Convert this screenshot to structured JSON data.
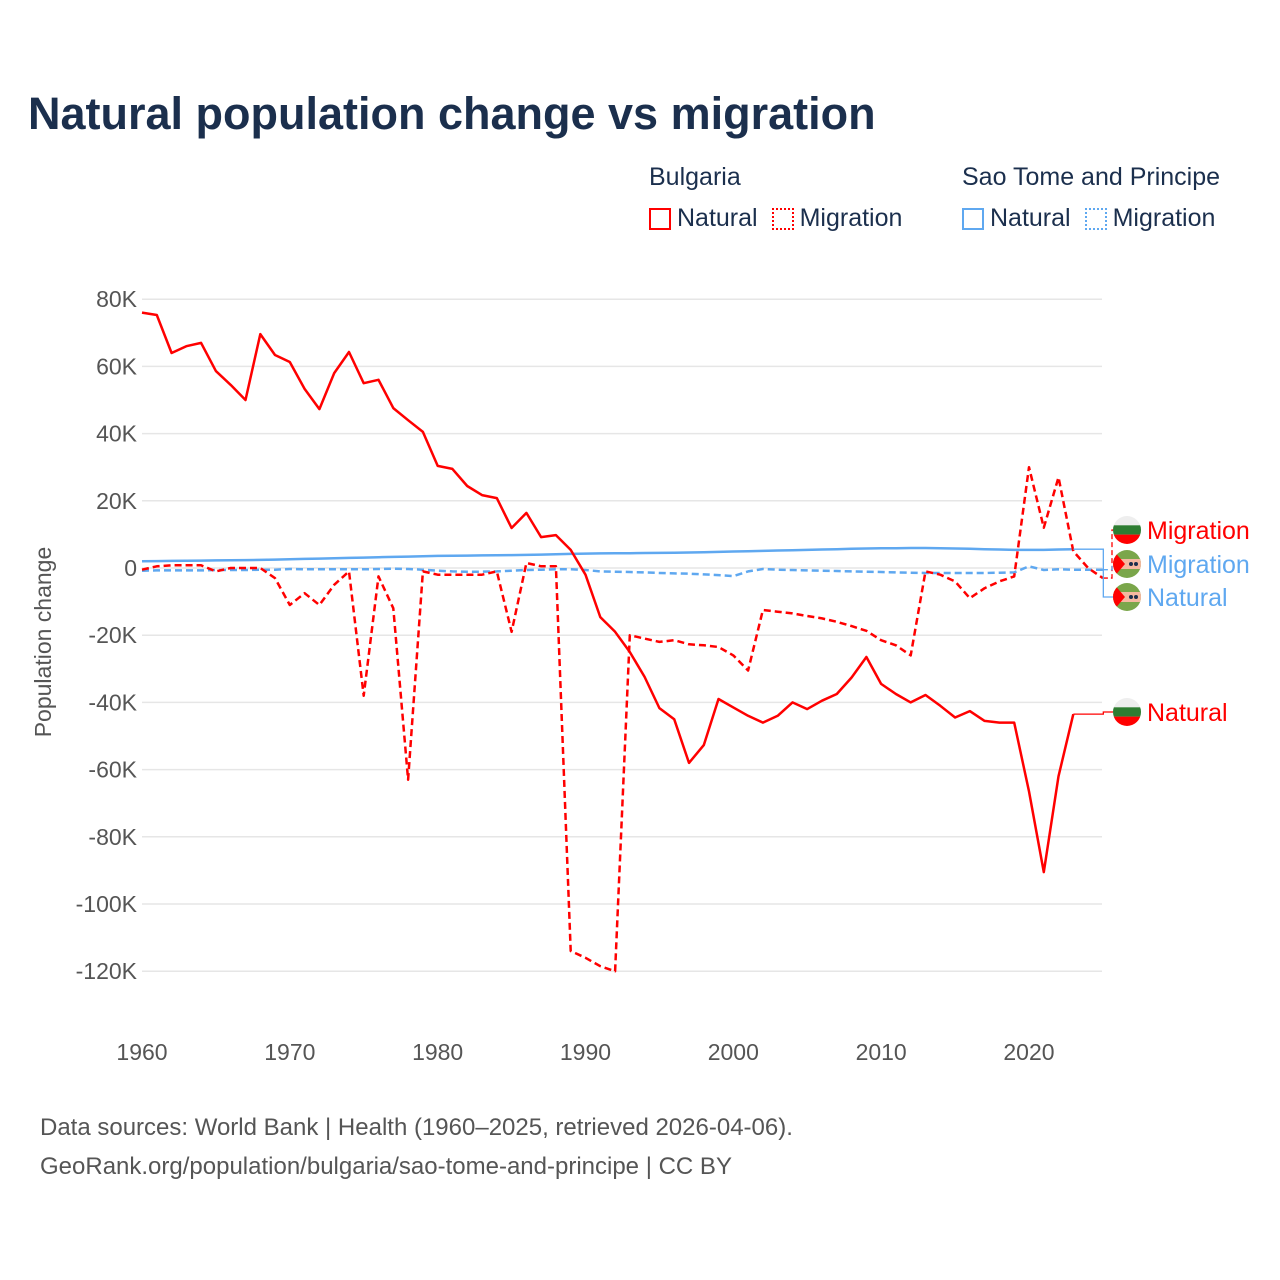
{
  "title": "Natural population change vs migration",
  "legend": {
    "groups": [
      {
        "name": "Bulgaria",
        "items": [
          "Natural",
          "Migration"
        ],
        "color": "#ff0000"
      },
      {
        "name": "Sao Tome and Principe",
        "items": [
          "Natural",
          "Migration"
        ],
        "color": "#5fa8f0"
      }
    ]
  },
  "footer": {
    "line1": "Data sources: World Bank | Health (1960–2025, retrieved 2026-04-06).",
    "line2": "GeoRank.org/population/bulgaria/sao-tome-and-principe | CC BY"
  },
  "chart_data": {
    "type": "line",
    "title": "Natural population change vs migration",
    "xlabel": "",
    "ylabel": "Population change",
    "xlim": [
      1960,
      2025
    ],
    "ylim": [
      -130000,
      85000
    ],
    "x_ticks": [
      1960,
      1970,
      1980,
      1990,
      2000,
      2010,
      2020
    ],
    "x_tick_labels": [
      "1960",
      "1970",
      "1980",
      "1990",
      "2000",
      "2010",
      "2020"
    ],
    "y_ticks": [
      80000,
      60000,
      40000,
      20000,
      0,
      -20000,
      -40000,
      -60000,
      -80000,
      -100000,
      -120000
    ],
    "y_tick_labels": [
      "80K",
      "60K",
      "40K",
      "20K",
      "0",
      "-20K",
      "-40K",
      "-60K",
      "-80K",
      "-100K",
      "-120K"
    ],
    "grid": true,
    "legend_position": "top-right",
    "series": [
      {
        "name": "Bulgaria Natural",
        "end_label": "Natural",
        "color": "#ff0000",
        "dash": false,
        "start": 1960,
        "values": [
          76000,
          75300,
          64000,
          66000,
          67000,
          58600,
          54500,
          50000,
          69600,
          63400,
          61300,
          53300,
          47300,
          58000,
          64300,
          55000,
          56000,
          47600,
          44000,
          40500,
          30400,
          29500,
          24400,
          21700,
          20800,
          11900,
          16400,
          9200,
          9800,
          5400,
          -2000,
          -14600,
          -19000,
          -25000,
          -32400,
          -41700,
          -45000,
          -58000,
          -52700,
          -39000,
          -41500,
          -44000,
          -46000,
          -44000,
          -40000,
          -42000,
          -39500,
          -37500,
          -32600,
          -26500,
          -34500,
          -37500,
          -40000,
          -37800,
          -41000,
          -44500,
          -42600,
          -45500,
          -46000,
          -46000,
          -66500,
          -90500,
          -62000,
          -43500
        ]
      },
      {
        "name": "Bulgaria Migration",
        "end_label": "Migration",
        "color": "#ff0000",
        "dash": true,
        "start": 1960,
        "values": [
          -500,
          500,
          800,
          800,
          800,
          -1000,
          0,
          0,
          0,
          -3000,
          -11000,
          -7500,
          -11000,
          -5000,
          -1000,
          -38000,
          -2500,
          -12000,
          -63000,
          -1000,
          -2000,
          -2000,
          -2000,
          -2000,
          -1000,
          -19000,
          1500,
          500,
          500,
          -114000,
          -116000,
          -118500,
          -120000,
          -20000,
          -21000,
          -22000,
          -21500,
          -22700,
          -23000,
          -23500,
          -26000,
          -30500,
          -12500,
          -13000,
          -13500,
          -14300,
          -15000,
          -16000,
          -17300,
          -18700,
          -21500,
          -23000,
          -26000,
          -1000,
          -2000,
          -4000,
          -9000,
          -6000,
          -4000,
          -2500,
          30000,
          12000,
          27000,
          5000,
          0,
          -3000
        ]
      },
      {
        "name": "Sao Tome and Principe Natural",
        "end_label": "Natural",
        "color": "#5fa8f0",
        "dash": false,
        "start": 1960,
        "values": [
          2000,
          2050,
          2100,
          2150,
          2200,
          2250,
          2300,
          2350,
          2400,
          2500,
          2600,
          2700,
          2800,
          2900,
          3000,
          3100,
          3200,
          3300,
          3400,
          3500,
          3600,
          3650,
          3700,
          3750,
          3800,
          3850,
          3900,
          4000,
          4100,
          4200,
          4300,
          4350,
          4400,
          4400,
          4450,
          4500,
          4550,
          4600,
          4700,
          4800,
          4900,
          5000,
          5100,
          5200,
          5300,
          5400,
          5500,
          5600,
          5700,
          5800,
          5850,
          5900,
          5950,
          5950,
          5900,
          5800,
          5700,
          5600,
          5500,
          5400,
          5400,
          5400,
          5500,
          5600
        ]
      },
      {
        "name": "Sao Tome and Principe Migration",
        "end_label": "Migration",
        "color": "#5fa8f0",
        "dash": true,
        "start": 1960,
        "values": [
          -800,
          -700,
          -700,
          -700,
          -700,
          -600,
          -600,
          -600,
          -500,
          -500,
          -300,
          -400,
          -400,
          -400,
          -400,
          -400,
          -300,
          -200,
          -300,
          -500,
          -800,
          -1000,
          -1100,
          -1100,
          -1000,
          -800,
          -600,
          -500,
          -400,
          -400,
          -600,
          -1000,
          -1100,
          -1200,
          -1300,
          -1500,
          -1600,
          -1700,
          -1900,
          -2100,
          -2400,
          -1000,
          -300,
          -500,
          -600,
          -700,
          -800,
          -900,
          -1000,
          -1100,
          -1200,
          -1300,
          -1400,
          -1500,
          -1500,
          -1500,
          -1500,
          -1500,
          -1400,
          -1300,
          500,
          -600,
          -400,
          -500,
          -500,
          -500
        ]
      }
    ]
  }
}
